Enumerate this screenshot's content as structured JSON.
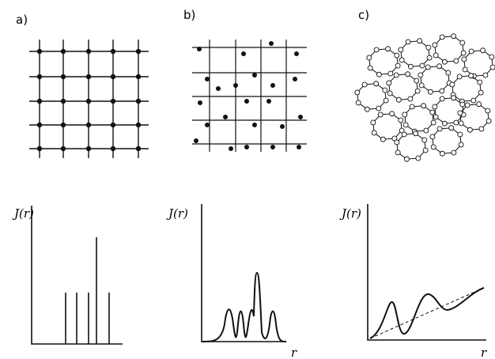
{
  "panels": [
    {
      "label": "a)",
      "y_label": "J(r)"
    },
    {
      "label": "b)",
      "y_label": "J(r)",
      "x_label": "r"
    },
    {
      "label": "c)",
      "y_label": "J(r)",
      "x_label": "r"
    }
  ]
}
